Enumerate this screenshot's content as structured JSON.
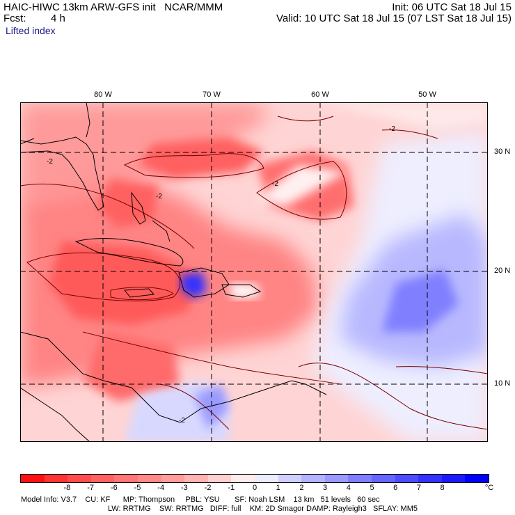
{
  "header": {
    "title": "HAIC-HIWC 13km ARW-GFS init   NCAR/MMM",
    "init": "Init: 06 UTC Sat 18 Jul 15",
    "fcst_label": "Fcst:",
    "fcst_value": "4 h",
    "valid": "Valid: 10 UTC Sat 18 Jul 15 (07 LST Sat 18 Jul 15)",
    "field": "Lifted index"
  },
  "map": {
    "lon_labels": [
      "80 W",
      "70 W",
      "60 W",
      "50 W"
    ],
    "lat_labels": [
      "30 N",
      "20 N",
      "10 N"
    ],
    "contour_labels": [
      "-2",
      "-2",
      "-2",
      "-2",
      "-2"
    ]
  },
  "colorbar": {
    "unit": "°C",
    "tick_labels": [
      "-8",
      "-7",
      "-6",
      "-5",
      "-4",
      "-3",
      "-2",
      "-1",
      "0",
      "1",
      "2",
      "3",
      "4",
      "5",
      "6",
      "7",
      "8"
    ],
    "colors": [
      "#ff1010",
      "#ff3333",
      "#ff4d4d",
      "#ff6262",
      "#ff7676",
      "#ff8a8a",
      "#ff9d9d",
      "#ffb3b3",
      "#ffd0d0",
      "#ffecec",
      "#ececff",
      "#d0d0ff",
      "#b3b3ff",
      "#9a9aff",
      "#8080ff",
      "#6666ff",
      "#4d4dff",
      "#3333ff",
      "#1a1aff",
      "#0000ff"
    ]
  },
  "model_info": {
    "line1": "Model Info: V3.7    CU: KF      MP: Thompson     PBL: YSU       SF: Noah LSM    13 km   51 levels   60 sec",
    "line2": "LW: RRTMG    SW: RRTMG   DIFF: full    KM: 2D Smagor DAMP: Rayleigh3   SFLAY: MM5"
  }
}
